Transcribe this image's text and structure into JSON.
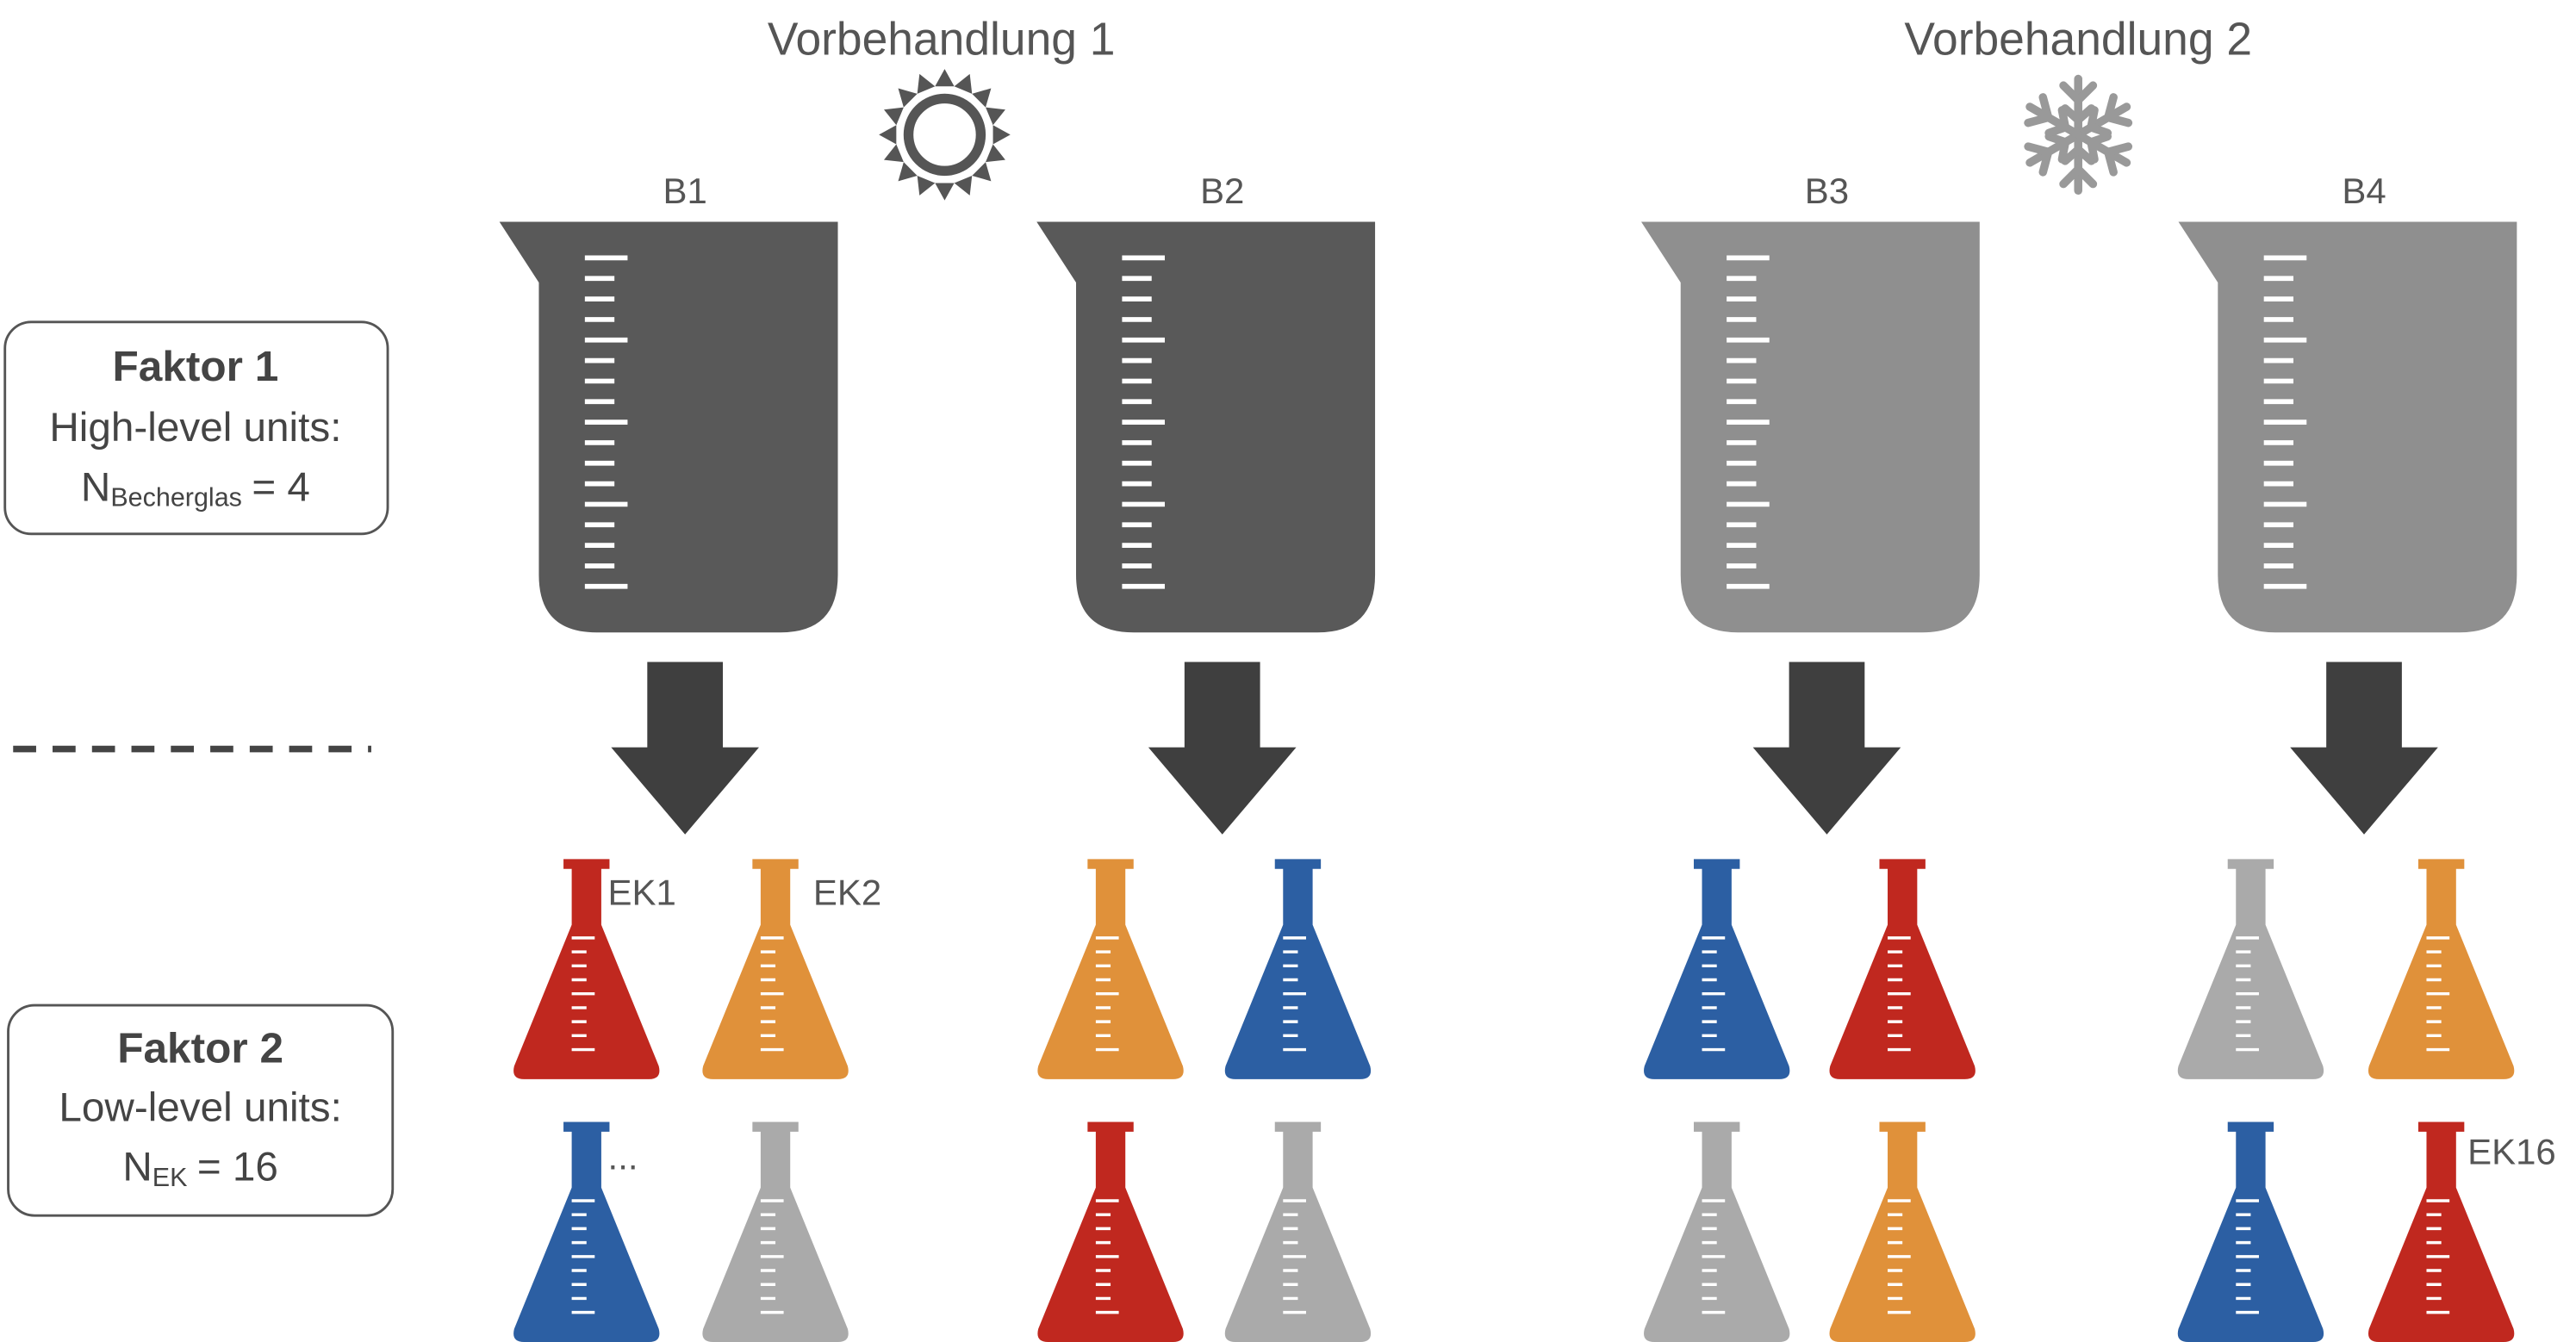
{
  "header": {
    "groups": [
      {
        "title": "Vorbehandlung 1"
      },
      {
        "title": "Vorbehandlung 2"
      }
    ]
  },
  "beakers": [
    {
      "label": "B1"
    },
    {
      "label": "B2"
    },
    {
      "label": "B3"
    },
    {
      "label": "B4"
    }
  ],
  "flask_labels": [
    {
      "text": "EK1"
    },
    {
      "text": "EK2"
    },
    {
      "text": "..."
    },
    {
      "text": "EK16"
    }
  ],
  "factors": [
    {
      "title": "Faktor 1",
      "subtitle": "High-level units:",
      "symbol": "N",
      "subscript": "Becherglas",
      "equation": "= 4"
    },
    {
      "title": "Faktor 2",
      "subtitle": "Low-level units:",
      "symbol": "N",
      "subscript": "EK",
      "equation": "= 16"
    }
  ]
}
